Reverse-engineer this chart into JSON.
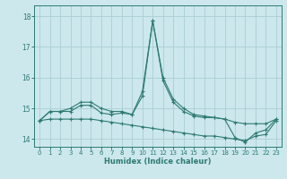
{
  "xlabel": "Humidex (Indice chaleur)",
  "background_color": "#cce8ec",
  "grid_color": "#aacdd4",
  "line_color": "#2d7a72",
  "xlim": [
    -0.5,
    23.5
  ],
  "ylim": [
    13.75,
    18.35
  ],
  "yticks": [
    14,
    15,
    16,
    17,
    18
  ],
  "xticks": [
    0,
    1,
    2,
    3,
    4,
    5,
    6,
    7,
    8,
    9,
    10,
    11,
    12,
    13,
    14,
    15,
    16,
    17,
    18,
    19,
    20,
    21,
    22,
    23
  ],
  "series": {
    "line1": [
      14.6,
      14.9,
      14.9,
      14.9,
      15.1,
      15.1,
      14.85,
      14.8,
      14.85,
      14.8,
      15.55,
      17.85,
      16.0,
      15.3,
      15.0,
      14.8,
      14.75,
      14.7,
      14.65,
      14.05,
      13.9,
      14.2,
      14.3,
      14.65
    ],
    "line2": [
      14.6,
      14.9,
      14.9,
      15.0,
      15.2,
      15.2,
      15.0,
      14.9,
      14.9,
      14.8,
      15.4,
      17.85,
      15.9,
      15.2,
      14.9,
      14.75,
      14.7,
      14.7,
      14.65,
      14.55,
      14.5,
      14.5,
      14.5,
      14.65
    ],
    "line3": [
      14.6,
      14.65,
      14.65,
      14.65,
      14.65,
      14.65,
      14.6,
      14.55,
      14.5,
      14.45,
      14.4,
      14.35,
      14.3,
      14.25,
      14.2,
      14.15,
      14.1,
      14.1,
      14.05,
      14.0,
      13.95,
      14.1,
      14.15,
      14.6
    ]
  }
}
